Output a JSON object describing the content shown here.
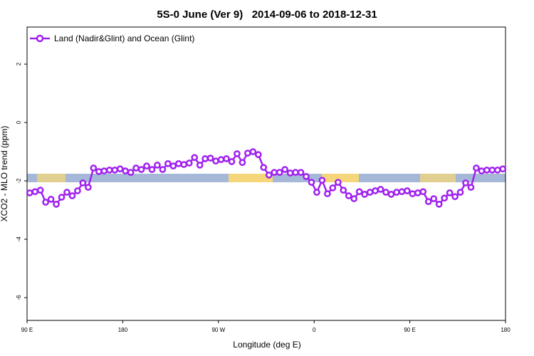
{
  "chart_data": {
    "type": "line",
    "title": "5S-0 June (Ver 9)   2014-09-06 to 2018-12-31",
    "x_label": "Longitude (deg E)",
    "y_label": "XCO2 - MLO trend (ppm)",
    "legend": "top-left",
    "xlim": [
      90,
      540
    ],
    "ylim": [
      -6.78,
      3.27
    ],
    "xticks": [
      {
        "value": 90,
        "label": "90 E"
      },
      180,
      {
        "value": 270,
        "label": "90 W"
      },
      {
        "value": 360,
        "label": "0"
      },
      {
        "value": 450,
        "label": "90 E"
      },
      {
        "value": 540,
        "label": "180"
      }
    ],
    "yticks": [
      2,
      0,
      -2,
      -4,
      -6
    ],
    "x": [
      92.5,
      97.5,
      102.5,
      107.5,
      112.5,
      117.5,
      122.5,
      127.5,
      132.5,
      137.5,
      142.5,
      147.5,
      152.5,
      157.5,
      162.5,
      167.5,
      172.5,
      177.5,
      182.5,
      187.5,
      192.5,
      197.5,
      202.5,
      207.5,
      212.5,
      217.5,
      222.5,
      227.5,
      232.5,
      237.5,
      242.5,
      247.5,
      252.5,
      257.5,
      262.5,
      267.5,
      272.5,
      277.5,
      282.5,
      287.5,
      292.5,
      297.5,
      302.5,
      307.5,
      312.5,
      317.5,
      322.5,
      327.5,
      332.5,
      337.5,
      342.5,
      347.5,
      352.5,
      357.5,
      362.5,
      367.5,
      372.5,
      377.5,
      382.5,
      387.5,
      392.5,
      397.5,
      402.5,
      407.5,
      412.5,
      417.5,
      422.5,
      427.5,
      432.5,
      437.5,
      442.5,
      447.5,
      452.5,
      457.5,
      462.5,
      467.5,
      472.5,
      477.5,
      482.5,
      487.5,
      492.5,
      497.5,
      502.5,
      507.5,
      512.5,
      517.5,
      522.5,
      527.5,
      532.5,
      537.5
    ],
    "series": [
      {
        "name": "Land (Nadir&Glint) and Ocean (Glint)",
        "color": "#a020f0",
        "values": [
          -2.41,
          -2.37,
          -2.32,
          -2.73,
          -2.63,
          -2.8,
          -2.56,
          -2.39,
          -2.51,
          -2.34,
          -2.07,
          -2.22,
          -1.56,
          -1.68,
          -1.66,
          -1.63,
          -1.63,
          -1.59,
          -1.66,
          -1.71,
          -1.56,
          -1.61,
          -1.49,
          -1.61,
          -1.46,
          -1.61,
          -1.41,
          -1.49,
          -1.41,
          -1.44,
          -1.39,
          -1.2,
          -1.46,
          -1.24,
          -1.22,
          -1.32,
          -1.27,
          -1.24,
          -1.34,
          -1.07,
          -1.37,
          -1.05,
          -1.0,
          -1.1,
          -1.54,
          -1.8,
          -1.71,
          -1.71,
          -1.61,
          -1.73,
          -1.71,
          -1.71,
          -1.85,
          -2.05,
          -2.39,
          -1.98,
          -2.44,
          -2.24,
          -2.05,
          -2.32,
          -2.51,
          -2.61,
          -2.37,
          -2.46,
          -2.39,
          -2.34,
          -2.29,
          -2.39,
          -2.46,
          -2.39,
          -2.37,
          -2.34,
          -2.44,
          -2.41,
          -2.37,
          -2.71,
          -2.61,
          -2.8,
          -2.59,
          -2.41,
          -2.54,
          -2.39,
          -2.07,
          -2.22,
          -1.56,
          -1.66,
          -1.63,
          -1.63,
          -1.63,
          -1.59
        ]
      }
    ]
  }
}
